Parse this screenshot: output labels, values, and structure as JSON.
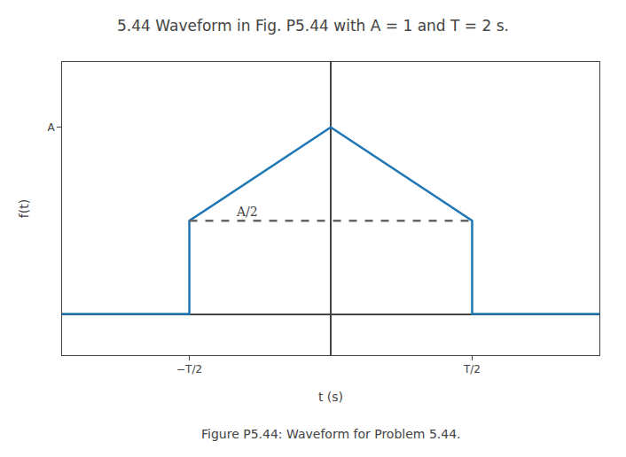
{
  "chart_data": {
    "type": "line",
    "title": "5.44 Waveform in Fig. P5.44 with A = 1 and T = 2 s.",
    "caption": "Figure P5.44: Waveform for Problem 5.44.",
    "x_label": "t (s)",
    "y_label": "f(t)",
    "series": [
      {
        "x": [
          -1.9,
          -1.0,
          -1.0,
          0.0,
          1.0,
          1.0,
          1.9
        ],
        "values": [
          0.0,
          0.0,
          0.5,
          1.0,
          0.5,
          0.0,
          0.0
        ],
        "line_style": "solid"
      },
      {
        "x": [
          -1.0,
          1.0
        ],
        "values": [
          0.5,
          0.5
        ],
        "line_style": "dashed",
        "color": "#666666"
      }
    ],
    "annotations": [
      {
        "text": "A/2",
        "x": -0.5,
        "y": 0.5
      }
    ],
    "xlim": [
      -1.9,
      1.9
    ],
    "ylim": [
      -0.22,
      1.35
    ],
    "xticks": [
      {
        "value": -1.0,
        "label": "−T/2"
      },
      {
        "value": 1.0,
        "label": "T/2"
      }
    ],
    "yticks": [
      {
        "value": 1.0,
        "label": "A"
      }
    ],
    "grid": false
  }
}
